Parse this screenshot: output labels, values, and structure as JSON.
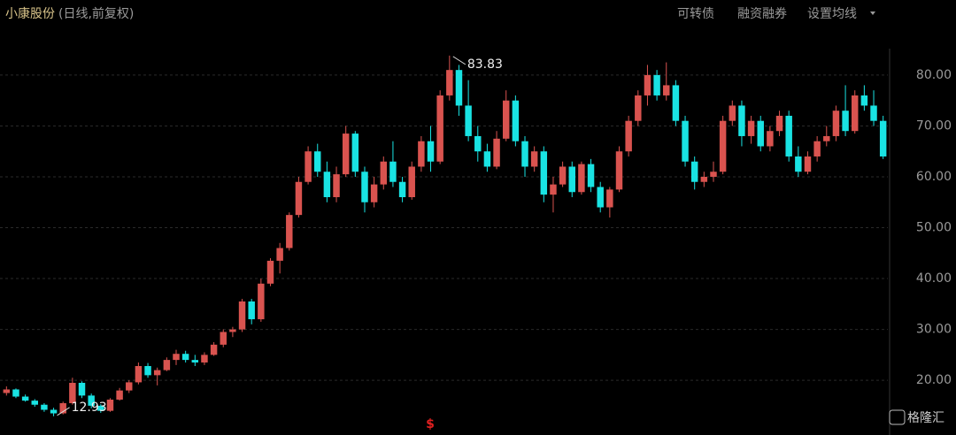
{
  "chart_data": {
    "type": "candlestick",
    "title": "小康股份",
    "subtitle": "(日线,前复权)",
    "buttons": [
      "可转债",
      "融资融券",
      "设置均线"
    ],
    "watermark": "格隆汇",
    "marker": "$",
    "annotations": [
      83.83,
      12.93
    ],
    "up_color": "#d9534f",
    "down_color": "#19e3e3",
    "grid": true,
    "ylim": [
      12.2,
      85.2
    ],
    "yticks": [
      {
        "value": 20,
        "label": "20.00"
      },
      {
        "value": 30,
        "label": "30.00"
      },
      {
        "value": 40,
        "label": "40.00"
      },
      {
        "value": 50,
        "label": "50.00"
      },
      {
        "value": 60,
        "label": "60.00"
      },
      {
        "value": 70,
        "label": "70.00"
      },
      {
        "value": 80,
        "label": "80.00"
      }
    ],
    "open": [
      17.5,
      18.2,
      16.8,
      16,
      15.2,
      14.2,
      13.5,
      15.5,
      19.5,
      17,
      15,
      14,
      16.2,
      18,
      19.6,
      22.8,
      21,
      22,
      24,
      25.2,
      24,
      23.5,
      25,
      27,
      29.5,
      30,
      35.5,
      32,
      39,
      43.5,
      46,
      52.5,
      59,
      65,
      61,
      56,
      60.5,
      68.5,
      61,
      55,
      58.5,
      63,
      59,
      56,
      62,
      67,
      63,
      76,
      81,
      74,
      68,
      65,
      62,
      67.5,
      75,
      67,
      62,
      65,
      56.5,
      58.5,
      62,
      57,
      62.5,
      58,
      54,
      57.5,
      65,
      71,
      76,
      80,
      76,
      78,
      71,
      63,
      59,
      60,
      61,
      71,
      74,
      68,
      71,
      66,
      69,
      72,
      64,
      61,
      64,
      67,
      68,
      73,
      69,
      76,
      74,
      71
    ],
    "high": [
      18.8,
      18.4,
      17.2,
      16.3,
      15.5,
      14.6,
      15.8,
      20.5,
      19.8,
      17.4,
      15.3,
      16.5,
      18.5,
      20,
      23.5,
      23.4,
      22.5,
      24.5,
      26,
      25.8,
      25,
      25.5,
      27.5,
      30,
      30.5,
      36,
      36,
      40,
      44,
      47,
      53,
      60,
      66,
      66.5,
      63,
      62,
      70,
      69,
      62,
      60,
      64,
      67,
      60,
      63,
      68,
      70,
      77,
      83.83,
      82,
      79,
      70,
      66.5,
      69,
      77,
      76,
      68,
      66,
      66,
      60,
      63,
      63,
      63,
      63.5,
      59,
      58,
      66,
      72,
      77,
      82,
      81,
      82.5,
      79,
      72,
      64,
      61,
      63,
      72,
      75,
      75,
      72,
      72,
      70,
      73,
      73,
      66,
      65,
      68,
      70,
      74,
      78,
      77,
      78,
      77,
      72
    ],
    "low": [
      17,
      16.5,
      15.8,
      14.8,
      13.8,
      12.93,
      13.3,
      15.2,
      16.5,
      14.5,
      13.6,
      13.8,
      16,
      17.5,
      19.2,
      20.5,
      19,
      21.8,
      23,
      23.5,
      22.8,
      23,
      24.8,
      26.5,
      28.5,
      29.5,
      31,
      31.5,
      38.5,
      41,
      45.5,
      52,
      58.5,
      60,
      55,
      55,
      60,
      60,
      53,
      54,
      57.5,
      58,
      55,
      55.5,
      61,
      61,
      62.5,
      75,
      72,
      67,
      63,
      61,
      61.5,
      67,
      66,
      60,
      61,
      55,
      53,
      58,
      56,
      56.5,
      57,
      53,
      52,
      57,
      64,
      70,
      74,
      75,
      75,
      70,
      62,
      57.5,
      58,
      59,
      60.5,
      70,
      66,
      66.5,
      65,
      65,
      68,
      63,
      60,
      60.5,
      63,
      66,
      67,
      68,
      68.5,
      73,
      70,
      63.5
    ],
    "close": [
      18.2,
      16.8,
      16,
      15.2,
      14.2,
      13.5,
      15.5,
      19.5,
      17,
      15,
      14,
      16.2,
      18,
      19.6,
      22.8,
      21,
      22,
      24,
      25.2,
      24,
      23.5,
      25,
      27,
      29.5,
      30,
      35.5,
      32,
      39,
      43.5,
      46,
      52.5,
      59,
      65,
      61,
      56,
      60.5,
      68.5,
      61,
      55,
      58.5,
      63,
      59,
      56,
      62,
      67,
      63,
      76,
      81,
      74,
      68,
      65,
      62,
      67.5,
      75,
      67,
      62,
      65,
      56.5,
      58.5,
      62,
      57,
      62.5,
      58,
      54,
      57.5,
      65,
      71,
      76,
      80,
      76,
      78,
      71,
      63,
      59,
      60,
      61,
      71,
      74,
      68,
      71,
      66,
      69,
      72,
      64,
      61,
      64,
      67,
      68,
      73,
      69,
      76,
      74,
      71,
      64
    ]
  }
}
